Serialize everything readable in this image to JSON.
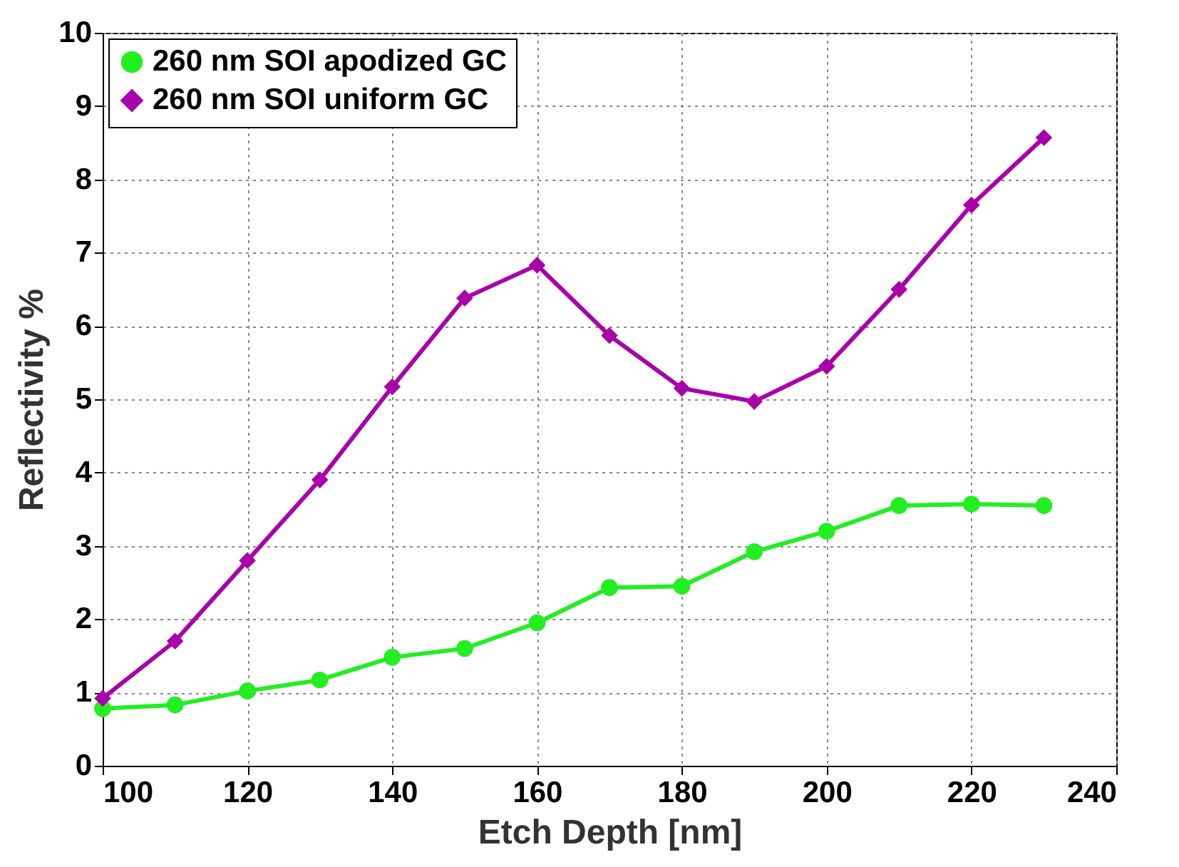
{
  "chart_data": {
    "type": "line",
    "xlabel": "Etch Depth [nm]",
    "ylabel": "Reflectivity %",
    "x": [
      100,
      110,
      120,
      130,
      140,
      150,
      160,
      170,
      180,
      190,
      200,
      210,
      220,
      230
    ],
    "series": [
      {
        "name": "260 nm SOI apodized GC",
        "color": "#22ee22",
        "marker": "circle",
        "values": [
          0.78,
          0.83,
          1.02,
          1.17,
          1.48,
          1.6,
          1.95,
          2.43,
          2.45,
          2.92,
          3.2,
          3.55,
          3.57,
          3.55
        ]
      },
      {
        "name": "260 nm SOI uniform GC",
        "color": "#aa00aa",
        "marker": "diamond",
        "values": [
          0.92,
          1.7,
          2.8,
          3.9,
          5.17,
          6.38,
          6.83,
          5.87,
          5.15,
          4.97,
          5.45,
          6.5,
          7.65,
          8.57
        ]
      }
    ],
    "xlim": [
      100,
      240
    ],
    "xticks": [
      100,
      120,
      140,
      160,
      180,
      200,
      220,
      240
    ],
    "ylim": [
      0,
      10
    ],
    "yticks": [
      0,
      1,
      2,
      3,
      4,
      5,
      6,
      7,
      8,
      9,
      10
    ],
    "grid": true,
    "legend": "top left",
    "line_style": "solid"
  }
}
